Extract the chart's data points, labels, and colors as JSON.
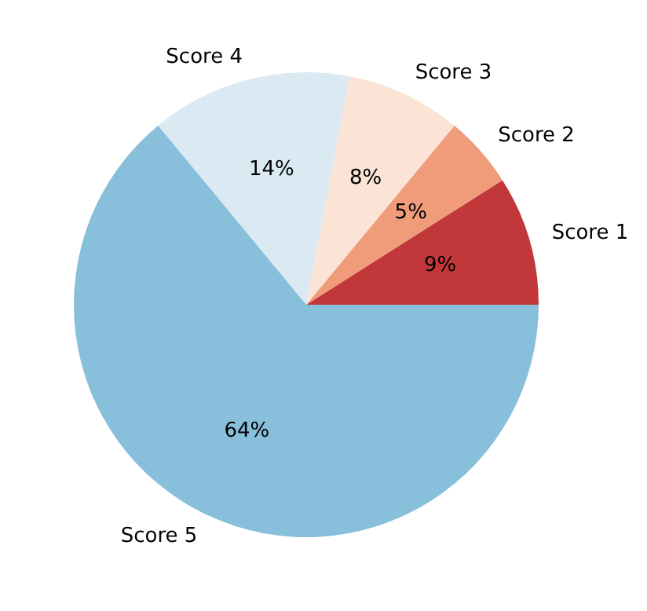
{
  "chart_data": {
    "type": "pie",
    "categories": [
      "Score 1",
      "Score 2",
      "Score 3",
      "Score 4",
      "Score 5"
    ],
    "values": [
      9,
      5,
      8,
      14,
      64
    ],
    "colors": [
      "#c2383a",
      "#f09c7b",
      "#fbe3d6",
      "#dbe9f3",
      "#88bfdb"
    ],
    "value_labels": [
      "9%",
      "5%",
      "8%",
      "14%",
      "64%"
    ]
  }
}
